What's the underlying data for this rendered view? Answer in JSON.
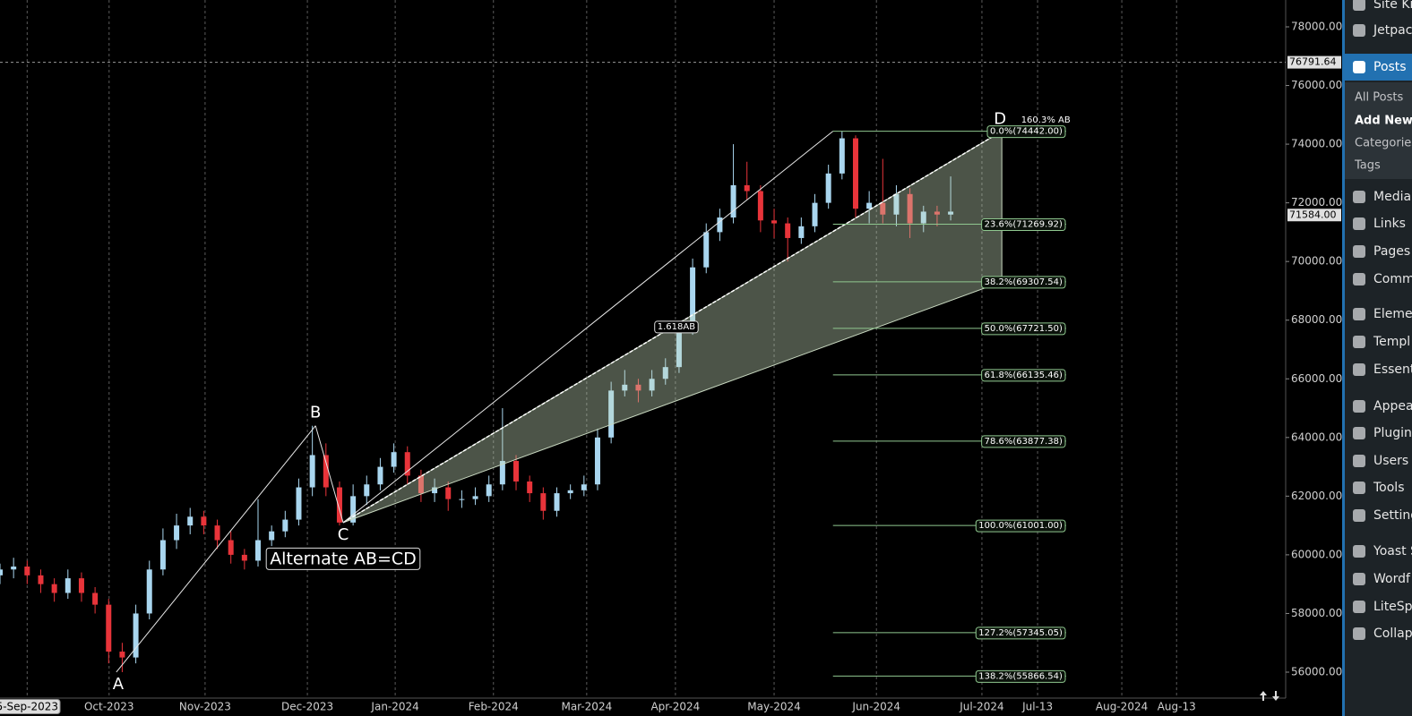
{
  "chart_data": {
    "type": "candlestick",
    "x": [
      0,
      3,
      6,
      9,
      12,
      15,
      18,
      21,
      24,
      27,
      30,
      33,
      36,
      39,
      42,
      45,
      48,
      51,
      54,
      57,
      60,
      63,
      66,
      69,
      72,
      75,
      78,
      81,
      84,
      87,
      90,
      93,
      96,
      99,
      102,
      105,
      108,
      111,
      114,
      117,
      120,
      123,
      126,
      129,
      132,
      135,
      138,
      141,
      144,
      147,
      150,
      153,
      156,
      159,
      162,
      165,
      168,
      171,
      174,
      177,
      180,
      183,
      186,
      189,
      192,
      195,
      198,
      201,
      204,
      207,
      210
    ],
    "open": [
      59300,
      59500,
      59600,
      59300,
      59000,
      58700,
      59200,
      58700,
      58300,
      56700,
      56500,
      58000,
      59500,
      60500,
      61000,
      61300,
      61000,
      60500,
      60000,
      59800,
      60500,
      60800,
      61200,
      62300,
      63400,
      62300,
      61100,
      62000,
      62400,
      63000,
      63500,
      62700,
      62100,
      62300,
      61900,
      61900,
      62000,
      62400,
      63200,
      62500,
      62100,
      61500,
      62100,
      62200,
      62400,
      64000,
      65600,
      65800,
      65600,
      66000,
      66400,
      67700,
      69800,
      71000,
      71500,
      72600,
      72400,
      71400,
      71300,
      70800,
      71200,
      72000,
      73000,
      74200,
      71800,
      72000,
      71600,
      72300,
      71300,
      71700,
      71600
    ],
    "high": [
      59700,
      59900,
      59800,
      59500,
      59200,
      59500,
      59400,
      58900,
      58500,
      57000,
      58300,
      59800,
      60900,
      61400,
      61600,
      61500,
      61200,
      60800,
      60200,
      61900,
      61000,
      61500,
      62600,
      64400,
      63800,
      62500,
      62400,
      62700,
      63300,
      63800,
      63700,
      62900,
      62600,
      62500,
      62200,
      62300,
      62700,
      65000,
      63400,
      62700,
      62300,
      62300,
      62400,
      62700,
      64300,
      65900,
      66300,
      66000,
      66300,
      66700,
      67900,
      70100,
      71300,
      71800,
      74000,
      73400,
      72600,
      71800,
      71500,
      71500,
      72300,
      73300,
      74442,
      74300,
      72400,
      73500,
      72600,
      72500,
      71900,
      71900,
      72900
    ],
    "low": [
      59000,
      59200,
      59000,
      58700,
      58400,
      58500,
      58400,
      58000,
      56300,
      56000,
      56300,
      57800,
      59300,
      60200,
      60700,
      60700,
      60200,
      59700,
      59500,
      59600,
      60300,
      60600,
      61000,
      62000,
      62000,
      61000,
      61000,
      61700,
      62200,
      62800,
      62400,
      61800,
      61800,
      61500,
      61600,
      61700,
      61800,
      62200,
      62200,
      61800,
      61200,
      61300,
      61900,
      62000,
      62200,
      63800,
      65400,
      65200,
      65400,
      65800,
      66200,
      67500,
      69600,
      70700,
      71300,
      72100,
      71000,
      70800,
      70000,
      70600,
      71000,
      71800,
      72800,
      71500,
      71300,
      71300,
      71200,
      70800,
      71000,
      71200,
      71400
    ],
    "close": [
      59500,
      59600,
      59300,
      59000,
      58700,
      59200,
      58700,
      58300,
      56700,
      56500,
      58000,
      59500,
      60500,
      61000,
      61300,
      61000,
      60500,
      60000,
      59800,
      60500,
      60800,
      61200,
      62300,
      63400,
      62300,
      61100,
      62000,
      62400,
      63000,
      63500,
      62700,
      62100,
      62300,
      61900,
      61900,
      62000,
      62400,
      63200,
      62500,
      62100,
      61500,
      62100,
      62200,
      62400,
      64000,
      65600,
      65800,
      65600,
      66000,
      66400,
      67700,
      69800,
      71000,
      71500,
      72600,
      72400,
      71400,
      71300,
      70800,
      71200,
      72000,
      73000,
      74200,
      71800,
      72000,
      71600,
      72300,
      71300,
      71700,
      71600,
      71700
    ],
    "up_color": "#a9d6ef",
    "down_color": "#e8343a",
    "xlim": [
      0,
      284
    ],
    "xticks": [
      {
        "value": 6,
        "label": "5-Sep-2023"
      },
      {
        "value": 24.1,
        "label": "Oct-2023"
      },
      {
        "value": 45.3,
        "label": "Nov-2023"
      },
      {
        "value": 67.9,
        "label": "Dec-2023"
      },
      {
        "value": 87.3,
        "label": "Jan-2024"
      },
      {
        "value": 109,
        "label": "Feb-2024"
      },
      {
        "value": 129.6,
        "label": "Mar-2024"
      },
      {
        "value": 149.2,
        "label": "Apr-2024"
      },
      {
        "value": 171,
        "label": "May-2024"
      },
      {
        "value": 193.6,
        "label": "Jun-2024"
      },
      {
        "value": 216.9,
        "label": "Jul-2024"
      },
      {
        "value": 229.2,
        "label": "Jul-13"
      },
      {
        "value": 247.8,
        "label": "Aug-2024"
      },
      {
        "value": 259.9,
        "label": "Aug-13"
      }
    ],
    "ylim": [
      55115,
      78915
    ],
    "yticks": [
      {
        "value": 56000,
        "label": "56000.00"
      },
      {
        "value": 58000,
        "label": "58000.00"
      },
      {
        "value": 60000,
        "label": "60000.00"
      },
      {
        "value": 62000,
        "label": "62000.00"
      },
      {
        "value": 64000,
        "label": "64000.00"
      },
      {
        "value": 66000,
        "label": "66000.00"
      },
      {
        "value": 68000,
        "label": "68000.00"
      },
      {
        "value": 70000,
        "label": "70000.00"
      },
      {
        "value": 72000,
        "label": "72000.00"
      },
      {
        "value": 74000,
        "label": "74000.00"
      },
      {
        "value": 76000,
        "label": "76000.00"
      },
      {
        "value": 78000,
        "label": "78000.00"
      }
    ],
    "grid": true,
    "pattern_title": "Alternate AB=CD",
    "pattern_points": [
      {
        "label": "A",
        "x": 25.7,
        "y": 56000
      },
      {
        "label": "B",
        "x": 69.7,
        "y": 64400
      },
      {
        "label": "C",
        "x": 75.8,
        "y": 61100
      },
      {
        "label": "D",
        "x": 221.3,
        "y": 74442
      }
    ],
    "fib_x": [
      184,
      235.5
    ],
    "fib_levels": [
      {
        "label": "0.0%(74442.00)",
        "value": 74442
      },
      {
        "label": "23.6%(71269.92)",
        "value": 71269.92
      },
      {
        "label": "38.2%(69307.54)",
        "value": 69307.54
      },
      {
        "label": "50.0%(67721.50)",
        "value": 67721.5
      },
      {
        "label": "61.8%(66135.46)",
        "value": 66135.46
      },
      {
        "label": "78.6%(63877.38)",
        "value": 63877.38
      },
      {
        "label": "100.0%(61001.00)",
        "value": 61001
      },
      {
        "label": "127.2%(57345.05)",
        "value": 57345.05
      },
      {
        "label": "138.2%(55866.54)",
        "value": 55866.54
      }
    ],
    "annotations": [
      {
        "text": "1.618AB",
        "x": 149.4,
        "y": 67780,
        "boxed": true
      },
      {
        "text": "160.3% AB",
        "x": 231,
        "y": 74830,
        "boxed": false
      }
    ],
    "price_markers": [
      {
        "value": 76791.64,
        "label": "76791.64",
        "line": true
      },
      {
        "value": 71584,
        "label": "71584.00",
        "line": false
      }
    ]
  },
  "sidebar": {
    "items": [
      "Site Ki",
      "Jetpac",
      "Posts",
      "Media",
      "Links",
      "Pages",
      "Comm",
      "Eleme",
      "Templ",
      "Essent",
      "Appea",
      "Plugin",
      "Users",
      "Tools",
      "Setting",
      "Yoast S",
      "Wordf",
      "LiteSp",
      "Collap"
    ],
    "active": 2,
    "submenu": [
      "All Posts",
      "Add New P",
      "Categories",
      "Tags"
    ],
    "submenu_current": 1
  }
}
